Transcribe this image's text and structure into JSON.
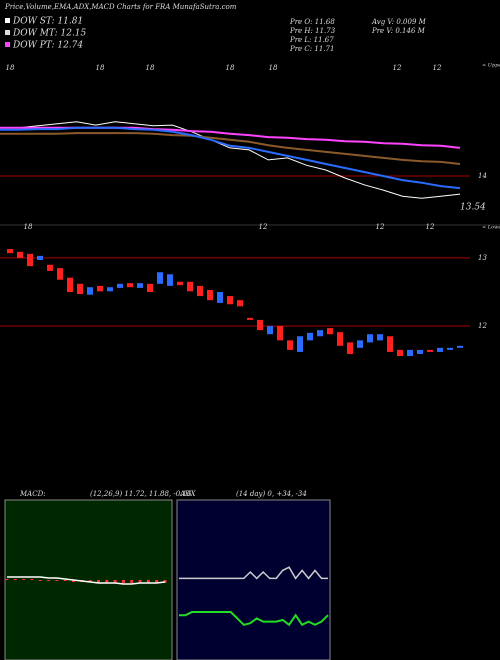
{
  "header": {
    "title": "Price,Volume,EMA,ADX,MACD Charts for FRA MunafaSutra.com",
    "info_left": [
      "Pre  O: 11.68",
      "Pre  H: 11.73",
      "Pre  L: 11.67",
      "Pre  C: 11.71"
    ],
    "info_right": [
      "Avg V: 0.009 M",
      "Pre  V: 0.146  M"
    ]
  },
  "chart_data": [
    {
      "type": "line",
      "legend": [
        {
          "name": "DOW ST: 11.81",
          "color": "#ffffff"
        },
        {
          "name": "DOW MT: 12.15",
          "color": "#dddddd"
        },
        {
          "name": "DOW PT: 12.74",
          "color": "#ff44ff"
        }
      ],
      "corner_label": "< Upper",
      "date_labels": [
        "18",
        "18",
        "18",
        "18",
        "18",
        "12",
        "12"
      ],
      "ylim": [
        13.27,
        15.7
      ],
      "yticks": [
        14
      ],
      "last_value": 13.54,
      "series": [
        {
          "color": "#ffffff",
          "values": [
            14.72,
            14.72,
            14.75,
            14.78,
            14.81,
            14.76,
            14.81,
            14.78,
            14.75,
            14.76,
            14.66,
            14.54,
            14.42,
            14.39,
            14.24,
            14.27,
            14.16,
            14.09,
            13.97,
            13.87,
            13.79,
            13.7,
            13.67,
            13.7,
            13.73
          ]
        },
        {
          "color": "#8b5a2b",
          "values": [
            14.63,
            14.63,
            14.63,
            14.63,
            14.64,
            14.64,
            14.64,
            14.64,
            14.63,
            14.61,
            14.6,
            14.57,
            14.54,
            14.51,
            14.46,
            14.42,
            14.39,
            14.36,
            14.33,
            14.3,
            14.27,
            14.24,
            14.22,
            14.21,
            14.18
          ]
        },
        {
          "color": "#ff44ff",
          "values": [
            14.72,
            14.72,
            14.72,
            14.72,
            14.72,
            14.72,
            14.72,
            14.72,
            14.7,
            14.69,
            14.67,
            14.66,
            14.63,
            14.61,
            14.58,
            14.57,
            14.55,
            14.54,
            14.52,
            14.51,
            14.49,
            14.48,
            14.46,
            14.45,
            14.42
          ]
        },
        {
          "color": "#2a6cff",
          "values": [
            14.69,
            14.69,
            14.7,
            14.7,
            14.72,
            14.72,
            14.72,
            14.7,
            14.69,
            14.66,
            14.61,
            14.54,
            14.45,
            14.42,
            14.36,
            14.3,
            14.24,
            14.18,
            14.12,
            14.06,
            14.0,
            13.94,
            13.9,
            13.85,
            13.82
          ]
        }
      ]
    },
    {
      "type": "candlestick",
      "corner_label": "< Lower",
      "date_labels": [
        "18",
        "12",
        "12",
        "12"
      ],
      "ylim": [
        9.74,
        13.41
      ],
      "yticks": [
        13,
        12
      ],
      "up_color": "#2a6cff",
      "down_color": "#ff2020",
      "open": [
        13.13,
        13.09,
        13.06,
        12.97,
        12.9,
        12.85,
        12.71,
        12.62,
        12.46,
        12.59,
        12.51,
        12.56,
        12.63,
        12.56,
        12.62,
        12.62,
        12.59,
        12.65,
        12.65,
        12.59,
        12.53,
        12.34,
        12.44,
        12.38,
        12.12,
        12.09,
        11.88,
        12.0,
        11.79,
        11.62,
        11.79,
        11.85,
        11.97,
        11.91,
        11.76,
        11.68,
        11.76,
        11.79,
        11.85,
        11.65,
        11.56,
        11.59,
        11.65,
        11.62,
        11.65,
        11.68
      ],
      "close": [
        13.07,
        13.0,
        12.88,
        13.03,
        12.81,
        12.68,
        12.5,
        12.47,
        12.57,
        12.51,
        12.57,
        12.62,
        12.57,
        12.63,
        12.5,
        12.79,
        12.76,
        12.6,
        12.51,
        12.44,
        12.38,
        12.5,
        12.32,
        12.29,
        12.09,
        11.94,
        12.0,
        11.79,
        11.65,
        11.85,
        11.9,
        11.94,
        11.88,
        11.71,
        11.59,
        11.79,
        11.88,
        11.88,
        11.62,
        11.56,
        11.65,
        11.65,
        11.62,
        11.68,
        11.68,
        11.71
      ]
    },
    {
      "type": "macd",
      "label": "MACD:",
      "params": "(12,26,9) 11.72, 11.88, -0.16",
      "ylim": [
        -8,
        8
      ],
      "series": [
        {
          "color": "#ffffff",
          "values": [
            0.3,
            0.3,
            0.3,
            0.3,
            0.3,
            0.2,
            0.2,
            0.1,
            0.0,
            -0.1,
            -0.2,
            -0.3,
            -0.3,
            -0.3,
            -0.4,
            -0.4,
            -0.3,
            -0.3,
            -0.3,
            -0.2
          ]
        },
        {
          "color": "#ff3030",
          "values": [
            0.1,
            0.1,
            0.1,
            0.1,
            0.0,
            0.0,
            -0.1,
            -0.1,
            -0.2,
            -0.2,
            -0.2,
            -0.3,
            -0.3,
            -0.3,
            -0.3,
            -0.3,
            -0.3,
            -0.3,
            -0.3,
            -0.3
          ]
        }
      ]
    },
    {
      "type": "adx",
      "label": "ADX",
      "params": "(14 day) 0, +34, -34",
      "ylim": [
        0,
        100
      ],
      "series": [
        {
          "color": "#cccccc",
          "values": [
            51,
            51,
            51,
            51,
            51,
            51,
            51,
            51,
            51,
            51,
            51,
            55,
            51,
            55,
            51,
            51,
            56,
            58,
            51,
            56,
            51,
            56,
            51,
            51
          ]
        },
        {
          "color": "#22dd22",
          "values": [
            28,
            28,
            30,
            30,
            30,
            30,
            30,
            30,
            30,
            26,
            22,
            23,
            26,
            24,
            24,
            24,
            25,
            22,
            28,
            22,
            24,
            22,
            24,
            28
          ]
        }
      ]
    }
  ]
}
